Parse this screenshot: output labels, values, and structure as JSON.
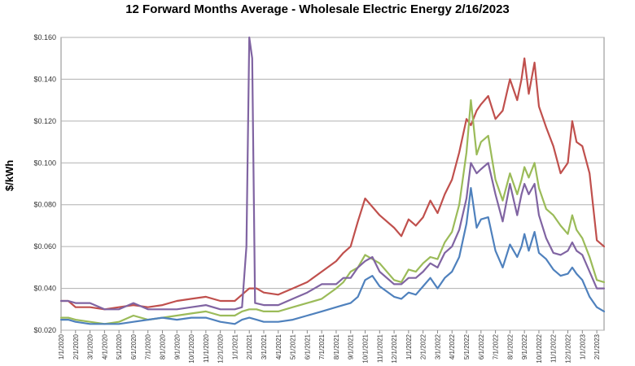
{
  "chart_data": {
    "type": "line",
    "title": "12 Forward Months Average - Wholesale Electric Energy 2/16/2023",
    "ylabel": "$/kWh",
    "xlabel": "",
    "ylim": [
      0.02,
      0.16
    ],
    "yticks": [
      "$0.020",
      "$0.040",
      "$0.060",
      "$0.080",
      "$0.100",
      "$0.120",
      "$0.140",
      "$0.160"
    ],
    "xticks": [
      "1/1/2020",
      "2/1/2020",
      "3/1/2020",
      "4/1/2020",
      "5/1/2020",
      "6/1/2020",
      "7/1/2020",
      "8/1/2020",
      "9/1/2020",
      "10/1/2020",
      "11/1/2020",
      "12/1/2020",
      "1/1/2021",
      "2/1/2021",
      "3/1/2021",
      "4/1/2021",
      "5/1/2021",
      "6/1/2021",
      "7/1/2021",
      "8/1/2021",
      "9/1/2021",
      "10/1/2021",
      "11/1/2021",
      "12/1/2021",
      "1/1/2022",
      "2/1/2022",
      "3/1/2022",
      "4/1/2022",
      "5/1/2022",
      "6/1/2022",
      "7/1/2022",
      "8/1/2022",
      "9/1/2022",
      "10/1/2022",
      "11/1/2022",
      "12/1/2022",
      "1/1/2023",
      "2/1/2023"
    ],
    "grid": true,
    "x_range": [
      0,
      37.5
    ],
    "series": [
      {
        "color": "#c0504d",
        "points": [
          [
            0,
            0.034
          ],
          [
            0.5,
            0.034
          ],
          [
            1,
            0.031
          ],
          [
            2,
            0.031
          ],
          [
            3,
            0.03
          ],
          [
            4,
            0.031
          ],
          [
            5,
            0.032
          ],
          [
            6,
            0.031
          ],
          [
            7,
            0.032
          ],
          [
            8,
            0.034
          ],
          [
            9,
            0.035
          ],
          [
            10,
            0.036
          ],
          [
            11,
            0.034
          ],
          [
            12,
            0.034
          ],
          [
            12.5,
            0.037
          ],
          [
            13,
            0.04
          ],
          [
            13.5,
            0.04
          ],
          [
            14,
            0.038
          ],
          [
            15,
            0.037
          ],
          [
            16,
            0.04
          ],
          [
            17,
            0.043
          ],
          [
            18,
            0.048
          ],
          [
            19,
            0.053
          ],
          [
            19.5,
            0.057
          ],
          [
            20,
            0.06
          ],
          [
            20.5,
            0.072
          ],
          [
            21,
            0.083
          ],
          [
            21.5,
            0.079
          ],
          [
            22,
            0.075
          ],
          [
            23,
            0.069
          ],
          [
            23.5,
            0.065
          ],
          [
            24,
            0.073
          ],
          [
            24.5,
            0.07
          ],
          [
            25,
            0.074
          ],
          [
            25.5,
            0.082
          ],
          [
            26,
            0.076
          ],
          [
            26.5,
            0.085
          ],
          [
            27,
            0.092
          ],
          [
            27.5,
            0.105
          ],
          [
            28,
            0.121
          ],
          [
            28.3,
            0.118
          ],
          [
            28.7,
            0.125
          ],
          [
            29,
            0.128
          ],
          [
            29.5,
            0.132
          ],
          [
            30,
            0.121
          ],
          [
            30.5,
            0.125
          ],
          [
            31,
            0.14
          ],
          [
            31.5,
            0.13
          ],
          [
            31.8,
            0.14
          ],
          [
            32,
            0.15
          ],
          [
            32.3,
            0.133
          ],
          [
            32.7,
            0.148
          ],
          [
            33,
            0.127
          ],
          [
            33.5,
            0.117
          ],
          [
            34,
            0.108
          ],
          [
            34.5,
            0.095
          ],
          [
            35,
            0.1
          ],
          [
            35.3,
            0.12
          ],
          [
            35.6,
            0.11
          ],
          [
            36,
            0.108
          ],
          [
            36.5,
            0.095
          ],
          [
            37,
            0.063
          ],
          [
            37.5,
            0.06
          ]
        ]
      },
      {
        "color": "#9bbb59",
        "points": [
          [
            0,
            0.026
          ],
          [
            0.5,
            0.026
          ],
          [
            1,
            0.025
          ],
          [
            2,
            0.024
          ],
          [
            3,
            0.023
          ],
          [
            4,
            0.024
          ],
          [
            5,
            0.027
          ],
          [
            6,
            0.025
          ],
          [
            7,
            0.026
          ],
          [
            8,
            0.027
          ],
          [
            9,
            0.028
          ],
          [
            10,
            0.029
          ],
          [
            11,
            0.027
          ],
          [
            12,
            0.027
          ],
          [
            12.5,
            0.029
          ],
          [
            13,
            0.03
          ],
          [
            13.5,
            0.03
          ],
          [
            14,
            0.029
          ],
          [
            15,
            0.029
          ],
          [
            16,
            0.031
          ],
          [
            17,
            0.033
          ],
          [
            18,
            0.035
          ],
          [
            19,
            0.04
          ],
          [
            19.5,
            0.043
          ],
          [
            20,
            0.048
          ],
          [
            20.5,
            0.05
          ],
          [
            21,
            0.056
          ],
          [
            21.5,
            0.054
          ],
          [
            22,
            0.052
          ],
          [
            23,
            0.044
          ],
          [
            23.5,
            0.043
          ],
          [
            24,
            0.049
          ],
          [
            24.5,
            0.048
          ],
          [
            25,
            0.052
          ],
          [
            25.5,
            0.055
          ],
          [
            26,
            0.054
          ],
          [
            26.5,
            0.062
          ],
          [
            27,
            0.067
          ],
          [
            27.5,
            0.08
          ],
          [
            28,
            0.105
          ],
          [
            28.3,
            0.13
          ],
          [
            28.7,
            0.104
          ],
          [
            29,
            0.11
          ],
          [
            29.5,
            0.113
          ],
          [
            30,
            0.092
          ],
          [
            30.5,
            0.082
          ],
          [
            31,
            0.095
          ],
          [
            31.5,
            0.085
          ],
          [
            31.8,
            0.092
          ],
          [
            32,
            0.098
          ],
          [
            32.3,
            0.093
          ],
          [
            32.7,
            0.1
          ],
          [
            33,
            0.088
          ],
          [
            33.5,
            0.078
          ],
          [
            34,
            0.075
          ],
          [
            34.5,
            0.07
          ],
          [
            35,
            0.066
          ],
          [
            35.3,
            0.075
          ],
          [
            35.6,
            0.068
          ],
          [
            36,
            0.064
          ],
          [
            36.5,
            0.055
          ],
          [
            37,
            0.044
          ],
          [
            37.5,
            0.043
          ]
        ]
      },
      {
        "color": "#8064a2",
        "points": [
          [
            0,
            0.034
          ],
          [
            0.5,
            0.034
          ],
          [
            1,
            0.033
          ],
          [
            2,
            0.033
          ],
          [
            3,
            0.03
          ],
          [
            4,
            0.03
          ],
          [
            5,
            0.033
          ],
          [
            6,
            0.03
          ],
          [
            7,
            0.03
          ],
          [
            8,
            0.03
          ],
          [
            9,
            0.031
          ],
          [
            10,
            0.032
          ],
          [
            11,
            0.03
          ],
          [
            12,
            0.03
          ],
          [
            12.5,
            0.031
          ],
          [
            12.8,
            0.06
          ],
          [
            13.0,
            0.16
          ],
          [
            13.2,
            0.15
          ],
          [
            13.4,
            0.033
          ],
          [
            14,
            0.032
          ],
          [
            15,
            0.032
          ],
          [
            16,
            0.035
          ],
          [
            17,
            0.038
          ],
          [
            18,
            0.042
          ],
          [
            19,
            0.042
          ],
          [
            19.5,
            0.045
          ],
          [
            20,
            0.045
          ],
          [
            20.5,
            0.05
          ],
          [
            21,
            0.053
          ],
          [
            21.5,
            0.055
          ],
          [
            22,
            0.048
          ],
          [
            23,
            0.042
          ],
          [
            23.5,
            0.042
          ],
          [
            24,
            0.045
          ],
          [
            24.5,
            0.045
          ],
          [
            25,
            0.048
          ],
          [
            25.5,
            0.052
          ],
          [
            26,
            0.05
          ],
          [
            26.5,
            0.057
          ],
          [
            27,
            0.06
          ],
          [
            27.5,
            0.068
          ],
          [
            28,
            0.083
          ],
          [
            28.3,
            0.1
          ],
          [
            28.7,
            0.095
          ],
          [
            29,
            0.097
          ],
          [
            29.5,
            0.1
          ],
          [
            30,
            0.085
          ],
          [
            30.5,
            0.072
          ],
          [
            31,
            0.09
          ],
          [
            31.5,
            0.075
          ],
          [
            31.8,
            0.085
          ],
          [
            32,
            0.09
          ],
          [
            32.3,
            0.085
          ],
          [
            32.7,
            0.09
          ],
          [
            33,
            0.075
          ],
          [
            33.5,
            0.064
          ],
          [
            34,
            0.057
          ],
          [
            34.5,
            0.056
          ],
          [
            35,
            0.058
          ],
          [
            35.3,
            0.062
          ],
          [
            35.6,
            0.058
          ],
          [
            36,
            0.056
          ],
          [
            36.5,
            0.048
          ],
          [
            37,
            0.04
          ],
          [
            37.5,
            0.04
          ]
        ]
      },
      {
        "color": "#4f81bd",
        "points": [
          [
            0,
            0.025
          ],
          [
            0.5,
            0.025
          ],
          [
            1,
            0.024
          ],
          [
            2,
            0.023
          ],
          [
            3,
            0.023
          ],
          [
            4,
            0.023
          ],
          [
            5,
            0.024
          ],
          [
            6,
            0.025
          ],
          [
            7,
            0.026
          ],
          [
            8,
            0.025
          ],
          [
            9,
            0.026
          ],
          [
            10,
            0.026
          ],
          [
            11,
            0.024
          ],
          [
            12,
            0.023
          ],
          [
            12.5,
            0.025
          ],
          [
            13,
            0.026
          ],
          [
            13.5,
            0.025
          ],
          [
            14,
            0.024
          ],
          [
            15,
            0.024
          ],
          [
            16,
            0.025
          ],
          [
            17,
            0.027
          ],
          [
            18,
            0.029
          ],
          [
            19,
            0.031
          ],
          [
            19.5,
            0.032
          ],
          [
            20,
            0.033
          ],
          [
            20.5,
            0.036
          ],
          [
            21,
            0.044
          ],
          [
            21.5,
            0.046
          ],
          [
            22,
            0.041
          ],
          [
            23,
            0.036
          ],
          [
            23.5,
            0.035
          ],
          [
            24,
            0.038
          ],
          [
            24.5,
            0.037
          ],
          [
            25,
            0.041
          ],
          [
            25.5,
            0.045
          ],
          [
            26,
            0.04
          ],
          [
            26.5,
            0.045
          ],
          [
            27,
            0.048
          ],
          [
            27.5,
            0.055
          ],
          [
            28,
            0.071
          ],
          [
            28.3,
            0.088
          ],
          [
            28.7,
            0.069
          ],
          [
            29,
            0.073
          ],
          [
            29.5,
            0.074
          ],
          [
            30,
            0.058
          ],
          [
            30.5,
            0.05
          ],
          [
            31,
            0.061
          ],
          [
            31.5,
            0.055
          ],
          [
            31.8,
            0.06
          ],
          [
            32,
            0.066
          ],
          [
            32.3,
            0.058
          ],
          [
            32.7,
            0.067
          ],
          [
            33,
            0.057
          ],
          [
            33.5,
            0.054
          ],
          [
            34,
            0.049
          ],
          [
            34.5,
            0.046
          ],
          [
            35,
            0.047
          ],
          [
            35.3,
            0.05
          ],
          [
            35.6,
            0.047
          ],
          [
            36,
            0.044
          ],
          [
            36.5,
            0.036
          ],
          [
            37,
            0.031
          ],
          [
            37.5,
            0.029
          ]
        ]
      }
    ]
  }
}
